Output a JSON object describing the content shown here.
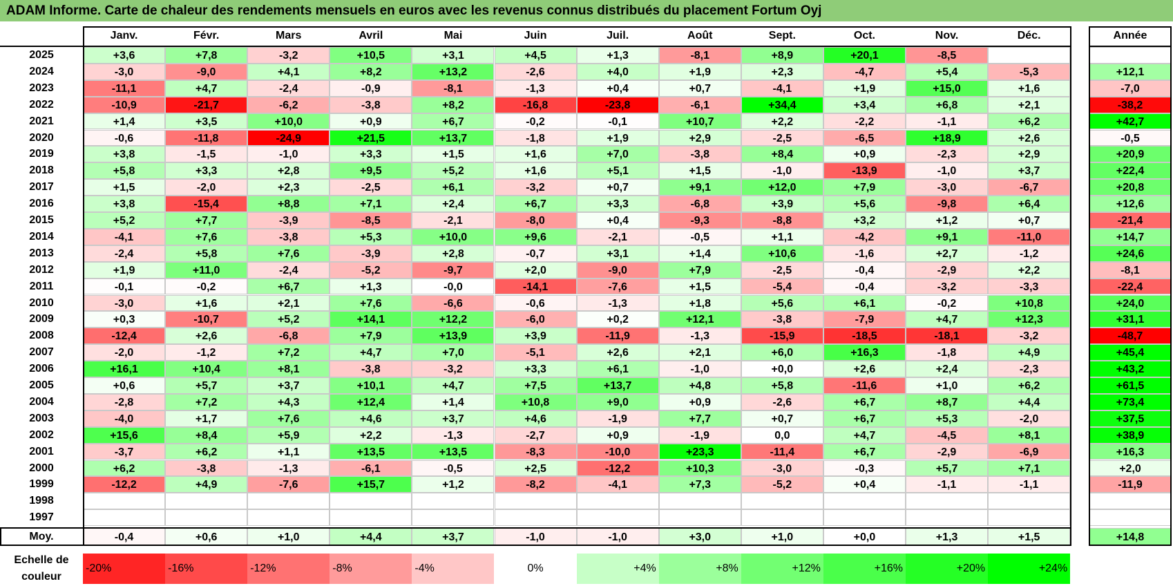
{
  "title": "ADAM Informe. Carte de chaleur des rendements mensuels en euros avec les revenus connus distribués du placement Fortum Oyj",
  "months": [
    "Janv.",
    "Févr.",
    "Mars",
    "Avril",
    "Mai",
    "Juin",
    "Juil.",
    "Août",
    "Sept.",
    "Oct.",
    "Nov.",
    "Déc."
  ],
  "year_header": "Année",
  "avg_label": "Moy.",
  "scale_label": "Echelle de couleur",
  "scale": [
    "-20%",
    "-16%",
    "-12%",
    "-8%",
    "-4%",
    "0%",
    "+4%",
    "+8%",
    "+12%",
    "+16%",
    "+20%",
    "+24%"
  ],
  "colors": {
    "negative": "#ff0000",
    "positive": "#00ee00",
    "neutral": "#ffffff",
    "title_bg": "#8fcc78"
  },
  "chart_data": {
    "type": "heatmap",
    "title": "ADAM Informe. Carte de chaleur des rendements mensuels en euros avec les revenus connus distribués du placement Fortum Oyj",
    "columns": [
      "Janv.",
      "Févr.",
      "Mars",
      "Avril",
      "Mai",
      "Juin",
      "Juil.",
      "Août",
      "Sept.",
      "Oct.",
      "Nov.",
      "Déc."
    ],
    "rows": [
      {
        "year": "2025",
        "months": [
          "+3,6",
          "+7,8",
          "-3,2",
          "+10,5",
          "+3,1",
          "+4,5",
          "+1,3",
          "-8,1",
          "+8,9",
          "+20,1",
          "-8,5",
          ""
        ],
        "annual": ""
      },
      {
        "year": "2024",
        "months": [
          "-3,0",
          "-9,0",
          "+4,1",
          "+8,2",
          "+13,2",
          "-2,6",
          "+4,0",
          "+1,9",
          "+2,3",
          "-4,7",
          "+5,4",
          "-5,3"
        ],
        "annual": "+12,1"
      },
      {
        "year": "2023",
        "months": [
          "-11,1",
          "+4,7",
          "-2,4",
          "-0,9",
          "-8,1",
          "-1,3",
          "+0,4",
          "+0,7",
          "-4,1",
          "+1,9",
          "+15,0",
          "+1,6"
        ],
        "annual": "-7,0"
      },
      {
        "year": "2022",
        "months": [
          "-10,9",
          "-21,7",
          "-6,2",
          "-3,8",
          "+8,2",
          "-16,8",
          "-23,8",
          "-6,1",
          "+34,4",
          "+3,4",
          "+6,8",
          "+2,1"
        ],
        "annual": "-38,2"
      },
      {
        "year": "2021",
        "months": [
          "+1,4",
          "+3,5",
          "+10,0",
          "+0,9",
          "+6,7",
          "-0,2",
          "-0,1",
          "+10,7",
          "+2,2",
          "-2,2",
          "-1,1",
          "+6,2"
        ],
        "annual": "+42,7"
      },
      {
        "year": "2020",
        "months": [
          "-0,6",
          "-11,8",
          "-24,9",
          "+21,5",
          "+13,7",
          "-1,8",
          "+1,9",
          "+2,9",
          "-2,5",
          "-6,5",
          "+18,9",
          "+2,6"
        ],
        "annual": "-0,5"
      },
      {
        "year": "2019",
        "months": [
          "+3,8",
          "-1,5",
          "-1,0",
          "+3,3",
          "+1,5",
          "+1,6",
          "+7,0",
          "-3,8",
          "+8,4",
          "+0,9",
          "-2,3",
          "+2,9"
        ],
        "annual": "+20,9"
      },
      {
        "year": "2018",
        "months": [
          "+5,8",
          "+3,3",
          "+2,8",
          "+9,5",
          "+5,2",
          "+1,6",
          "+5,1",
          "+1,5",
          "-1,0",
          "-13,9",
          "-1,0",
          "+3,7"
        ],
        "annual": "+22,4"
      },
      {
        "year": "2017",
        "months": [
          "+1,5",
          "-2,0",
          "+2,3",
          "-2,5",
          "+6,1",
          "-3,2",
          "+0,7",
          "+9,1",
          "+12,0",
          "+7,9",
          "-3,0",
          "-6,7"
        ],
        "annual": "+20,8"
      },
      {
        "year": "2016",
        "months": [
          "+3,8",
          "-15,4",
          "+8,8",
          "+7,1",
          "+2,4",
          "+6,7",
          "+3,3",
          "-6,8",
          "+3,9",
          "+5,6",
          "-9,8",
          "+6,4"
        ],
        "annual": "+12,6"
      },
      {
        "year": "2015",
        "months": [
          "+5,2",
          "+7,7",
          "-3,9",
          "-8,5",
          "-2,1",
          "-8,0",
          "+0,4",
          "-9,3",
          "-8,8",
          "+3,2",
          "+1,2",
          "+0,7"
        ],
        "annual": "-21,4"
      },
      {
        "year": "2014",
        "months": [
          "-4,1",
          "+7,6",
          "-3,8",
          "+5,3",
          "+10,0",
          "+9,6",
          "-2,1",
          "-0,5",
          "+1,1",
          "-4,2",
          "+9,1",
          "-11,0"
        ],
        "annual": "+14,7"
      },
      {
        "year": "2013",
        "months": [
          "-2,4",
          "+5,8",
          "+7,6",
          "-3,9",
          "+2,8",
          "-0,7",
          "+3,1",
          "+1,4",
          "+10,6",
          "-1,6",
          "+2,7",
          "-1,2"
        ],
        "annual": "+24,6"
      },
      {
        "year": "2012",
        "months": [
          "+1,9",
          "+11,0",
          "-2,4",
          "-5,2",
          "-9,7",
          "+2,0",
          "-9,0",
          "+7,9",
          "-2,5",
          "-0,4",
          "-2,9",
          "+2,2"
        ],
        "annual": "-8,1"
      },
      {
        "year": "2011",
        "months": [
          "-0,1",
          "-0,2",
          "+6,7",
          "+1,3",
          "-0,0",
          "-14,1",
          "-7,6",
          "+1,5",
          "-5,4",
          "-0,4",
          "-3,2",
          "-3,3"
        ],
        "annual": "-22,4"
      },
      {
        "year": "2010",
        "months": [
          "-3,0",
          "+1,6",
          "+2,1",
          "+7,6",
          "-6,6",
          "-0,6",
          "-1,3",
          "+1,8",
          "+5,6",
          "+6,1",
          "-0,2",
          "+10,8"
        ],
        "annual": "+24,0"
      },
      {
        "year": "2009",
        "months": [
          "+0,3",
          "-10,7",
          "+5,2",
          "+14,1",
          "+12,2",
          "-6,0",
          "+0,2",
          "+12,1",
          "-3,8",
          "-7,9",
          "+4,7",
          "+12,3"
        ],
        "annual": "+31,1"
      },
      {
        "year": "2008",
        "months": [
          "-12,4",
          "+2,6",
          "-6,8",
          "+7,9",
          "+13,9",
          "+3,9",
          "-11,9",
          "-1,3",
          "-15,9",
          "-18,5",
          "-18,1",
          "-3,2"
        ],
        "annual": "-48,7"
      },
      {
        "year": "2007",
        "months": [
          "-2,0",
          "-1,2",
          "+7,2",
          "+4,7",
          "+7,0",
          "-5,1",
          "+2,6",
          "+2,1",
          "+6,0",
          "+16,3",
          "-1,8",
          "+4,9"
        ],
        "annual": "+45,4"
      },
      {
        "year": "2006",
        "months": [
          "+16,1",
          "+10,4",
          "+8,1",
          "-3,8",
          "-3,2",
          "+3,3",
          "+6,1",
          "-1,0",
          "+0,0",
          "+2,6",
          "+2,4",
          "-2,3"
        ],
        "annual": "+43,2"
      },
      {
        "year": "2005",
        "months": [
          "+0,6",
          "+5,7",
          "+3,7",
          "+10,1",
          "+4,7",
          "+7,5",
          "+13,7",
          "+4,8",
          "+5,8",
          "-11,6",
          "+1,0",
          "+6,2"
        ],
        "annual": "+61,5"
      },
      {
        "year": "2004",
        "months": [
          "-2,8",
          "+7,2",
          "+4,3",
          "+12,4",
          "+1,4",
          "+10,8",
          "+9,0",
          "+0,9",
          "-2,6",
          "+6,7",
          "+8,7",
          "+4,4"
        ],
        "annual": "+73,4"
      },
      {
        "year": "2003",
        "months": [
          "-4,0",
          "+1,7",
          "+7,6",
          "+4,6",
          "+3,7",
          "+4,6",
          "-1,9",
          "+7,7",
          "+0,7",
          "+6,7",
          "+5,3",
          "-2,0"
        ],
        "annual": "+37,5"
      },
      {
        "year": "2002",
        "months": [
          "+15,6",
          "+8,4",
          "+5,9",
          "+2,2",
          "-1,3",
          "-2,7",
          "+0,9",
          "-1,9",
          "0,0",
          "+4,7",
          "-4,5",
          "+8,1"
        ],
        "annual": "+38,9"
      },
      {
        "year": "2001",
        "months": [
          "-3,7",
          "+6,2",
          "+1,1",
          "+13,5",
          "+13,5",
          "-8,3",
          "-10,0",
          "+23,3",
          "-11,4",
          "+6,7",
          "-2,9",
          "-6,9"
        ],
        "annual": "+16,3"
      },
      {
        "year": "2000",
        "months": [
          "+6,2",
          "-3,8",
          "-1,3",
          "-6,1",
          "-0,5",
          "+2,5",
          "-12,2",
          "+10,3",
          "-3,0",
          "-0,3",
          "+5,7",
          "+7,1"
        ],
        "annual": "+2,0"
      },
      {
        "year": "1999",
        "months": [
          "-12,2",
          "+4,9",
          "-7,6",
          "+15,7",
          "+1,2",
          "-8,2",
          "-4,1",
          "+7,3",
          "-5,2",
          "+0,4",
          "-1,1",
          "-1,1"
        ],
        "annual": "-11,9"
      },
      {
        "year": "1998",
        "months": [
          "",
          "",
          "",
          "",
          "",
          "",
          "",
          "",
          "",
          "",
          "",
          ""
        ],
        "annual": ""
      },
      {
        "year": "1997",
        "months": [
          "",
          "",
          "",
          "",
          "",
          "",
          "",
          "",
          "",
          "",
          "",
          ""
        ],
        "annual": ""
      }
    ],
    "average": {
      "months": [
        "-0,4",
        "+0,6",
        "+1,0",
        "+4,4",
        "+3,7",
        "-1,0",
        "-1,0",
        "+3,0",
        "+1,0",
        "+0,0",
        "+1,3",
        "+1,5"
      ],
      "annual": "+14,8"
    },
    "color_scale_range": [
      -24,
      24
    ]
  }
}
